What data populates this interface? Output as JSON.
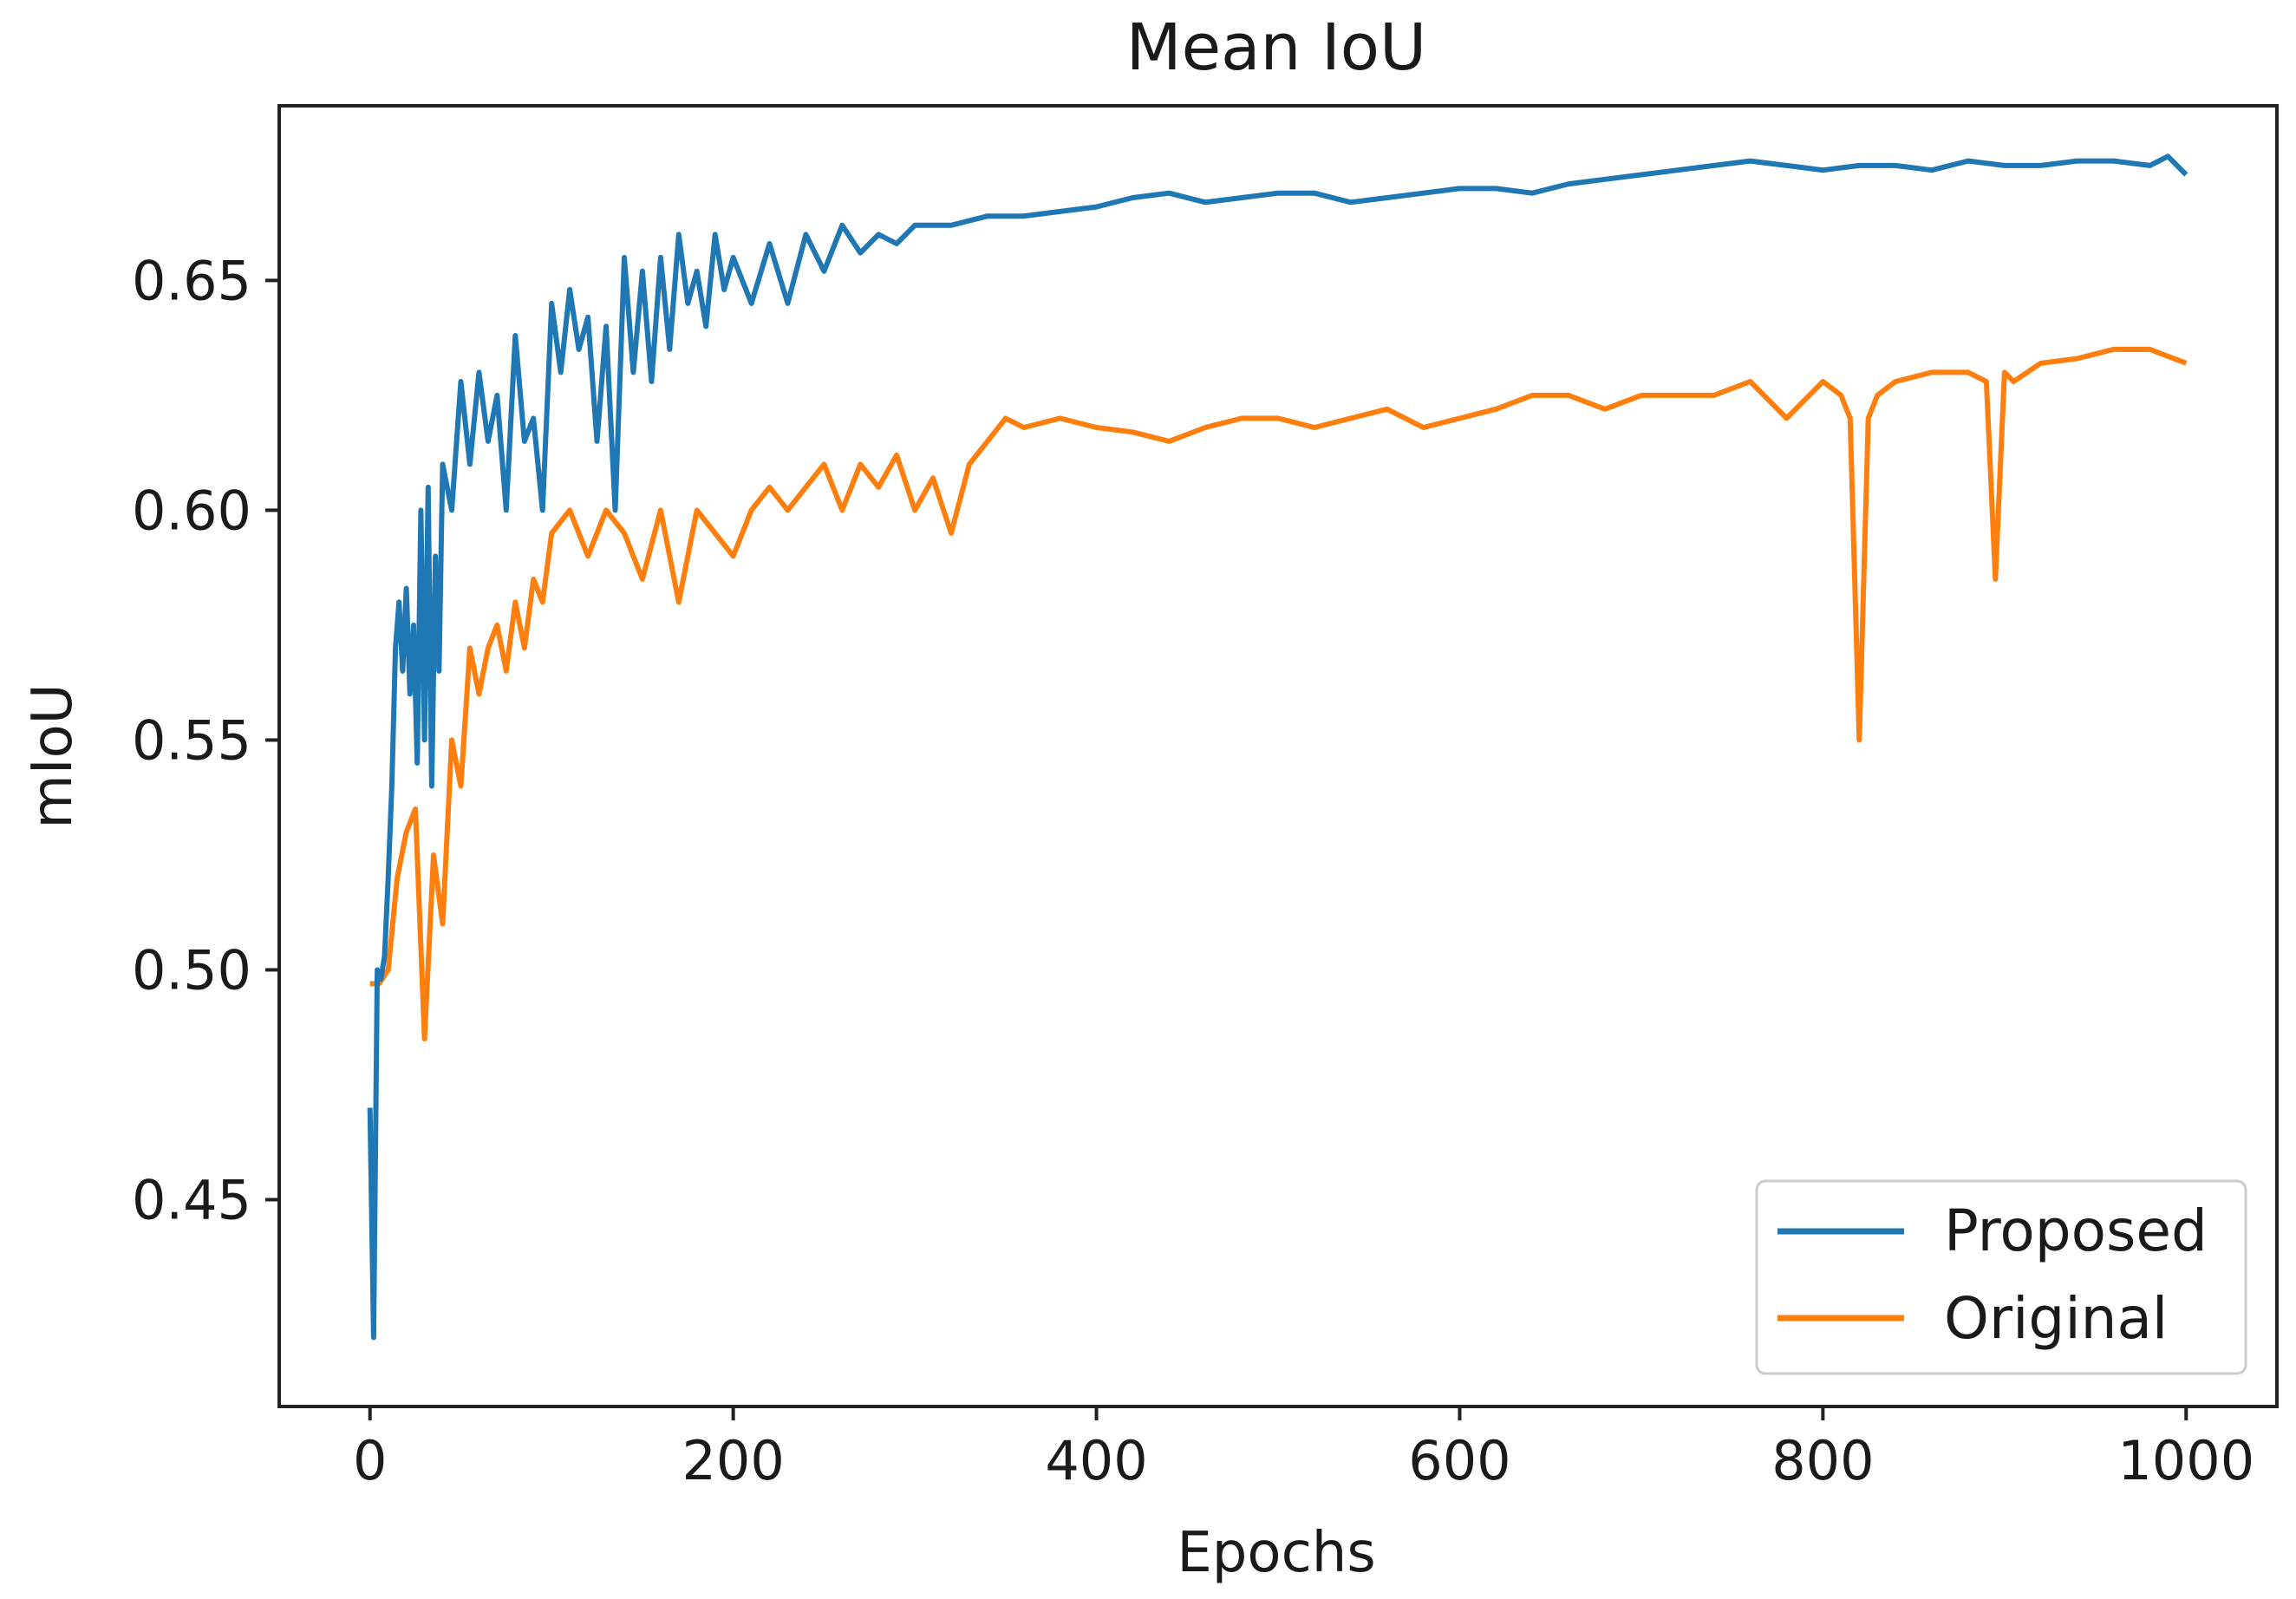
{
  "chart_data": {
    "type": "line",
    "title": "Mean IoU",
    "xlabel": "Epochs",
    "ylabel": "mIoU",
    "xlim": [
      -50,
      1050
    ],
    "ylim": [
      0.405,
      0.688
    ],
    "grid": false,
    "legend_position": "bottom-right",
    "x_ticks": [
      0,
      200,
      400,
      600,
      800,
      1000
    ],
    "x_tick_labels": [
      "0",
      "200",
      "400",
      "600",
      "800",
      "1000"
    ],
    "y_ticks": [
      0.45,
      0.5,
      0.55,
      0.6,
      0.65
    ],
    "y_tick_labels": [
      "0.45",
      "0.50",
      "0.55",
      "0.60",
      "0.65"
    ],
    "series": [
      {
        "name": "Proposed",
        "color": "#1f77b4",
        "x": [
          0,
          2,
          4,
          6,
          8,
          10,
          12,
          14,
          16,
          18,
          20,
          22,
          24,
          26,
          28,
          30,
          32,
          34,
          36,
          38,
          40,
          45,
          50,
          55,
          60,
          65,
          70,
          75,
          80,
          85,
          90,
          95,
          100,
          105,
          110,
          115,
          120,
          125,
          130,
          135,
          140,
          145,
          150,
          155,
          160,
          165,
          170,
          175,
          180,
          185,
          190,
          195,
          200,
          210,
          220,
          230,
          240,
          250,
          260,
          270,
          280,
          290,
          300,
          320,
          340,
          360,
          380,
          400,
          420,
          440,
          460,
          480,
          500,
          520,
          540,
          560,
          580,
          600,
          620,
          640,
          660,
          680,
          700,
          720,
          740,
          760,
          780,
          800,
          820,
          840,
          860,
          880,
          900,
          920,
          940,
          960,
          980,
          990,
          1000
        ],
        "y": [
          0.47,
          0.42,
          0.5,
          0.498,
          0.503,
          0.52,
          0.54,
          0.57,
          0.58,
          0.565,
          0.583,
          0.56,
          0.575,
          0.545,
          0.6,
          0.55,
          0.605,
          0.54,
          0.59,
          0.565,
          0.61,
          0.6,
          0.628,
          0.61,
          0.63,
          0.615,
          0.625,
          0.6,
          0.638,
          0.615,
          0.62,
          0.6,
          0.645,
          0.63,
          0.648,
          0.635,
          0.642,
          0.615,
          0.64,
          0.6,
          0.655,
          0.63,
          0.652,
          0.628,
          0.655,
          0.635,
          0.66,
          0.645,
          0.652,
          0.64,
          0.66,
          0.648,
          0.655,
          0.645,
          0.658,
          0.645,
          0.66,
          0.652,
          0.662,
          0.656,
          0.66,
          0.658,
          0.662,
          0.662,
          0.664,
          0.664,
          0.665,
          0.666,
          0.668,
          0.669,
          0.667,
          0.668,
          0.669,
          0.669,
          0.667,
          0.668,
          0.669,
          0.67,
          0.67,
          0.669,
          0.671,
          0.672,
          0.673,
          0.674,
          0.675,
          0.676,
          0.675,
          0.674,
          0.675,
          0.675,
          0.674,
          0.676,
          0.675,
          0.675,
          0.676,
          0.676,
          0.675,
          0.677,
          0.673
        ]
      },
      {
        "name": "Original",
        "color": "#ff7f0e",
        "x": [
          0,
          5,
          10,
          15,
          20,
          25,
          30,
          35,
          40,
          45,
          50,
          55,
          60,
          65,
          70,
          75,
          80,
          85,
          90,
          95,
          100,
          110,
          120,
          130,
          140,
          150,
          160,
          170,
          180,
          190,
          200,
          210,
          220,
          230,
          240,
          250,
          260,
          270,
          280,
          290,
          300,
          310,
          320,
          330,
          340,
          350,
          360,
          380,
          400,
          420,
          440,
          460,
          480,
          500,
          520,
          540,
          560,
          580,
          600,
          620,
          640,
          660,
          680,
          700,
          720,
          740,
          760,
          780,
          800,
          810,
          815,
          820,
          825,
          830,
          840,
          860,
          880,
          890,
          895,
          900,
          905,
          920,
          940,
          960,
          980,
          1000
        ],
        "y": [
          0.497,
          0.497,
          0.5,
          0.52,
          0.53,
          0.535,
          0.485,
          0.525,
          0.51,
          0.55,
          0.54,
          0.57,
          0.56,
          0.57,
          0.575,
          0.565,
          0.58,
          0.57,
          0.585,
          0.58,
          0.595,
          0.6,
          0.59,
          0.6,
          0.595,
          0.585,
          0.6,
          0.58,
          0.6,
          0.595,
          0.59,
          0.6,
          0.605,
          0.6,
          0.605,
          0.61,
          0.6,
          0.61,
          0.605,
          0.612,
          0.6,
          0.607,
          0.595,
          0.61,
          0.615,
          0.62,
          0.618,
          0.62,
          0.618,
          0.617,
          0.615,
          0.618,
          0.62,
          0.62,
          0.618,
          0.62,
          0.622,
          0.618,
          0.62,
          0.622,
          0.625,
          0.625,
          0.622,
          0.625,
          0.625,
          0.625,
          0.628,
          0.62,
          0.628,
          0.625,
          0.62,
          0.55,
          0.62,
          0.625,
          0.628,
          0.63,
          0.63,
          0.628,
          0.585,
          0.63,
          0.628,
          0.632,
          0.633,
          0.635,
          0.635,
          0.632
        ]
      }
    ]
  }
}
